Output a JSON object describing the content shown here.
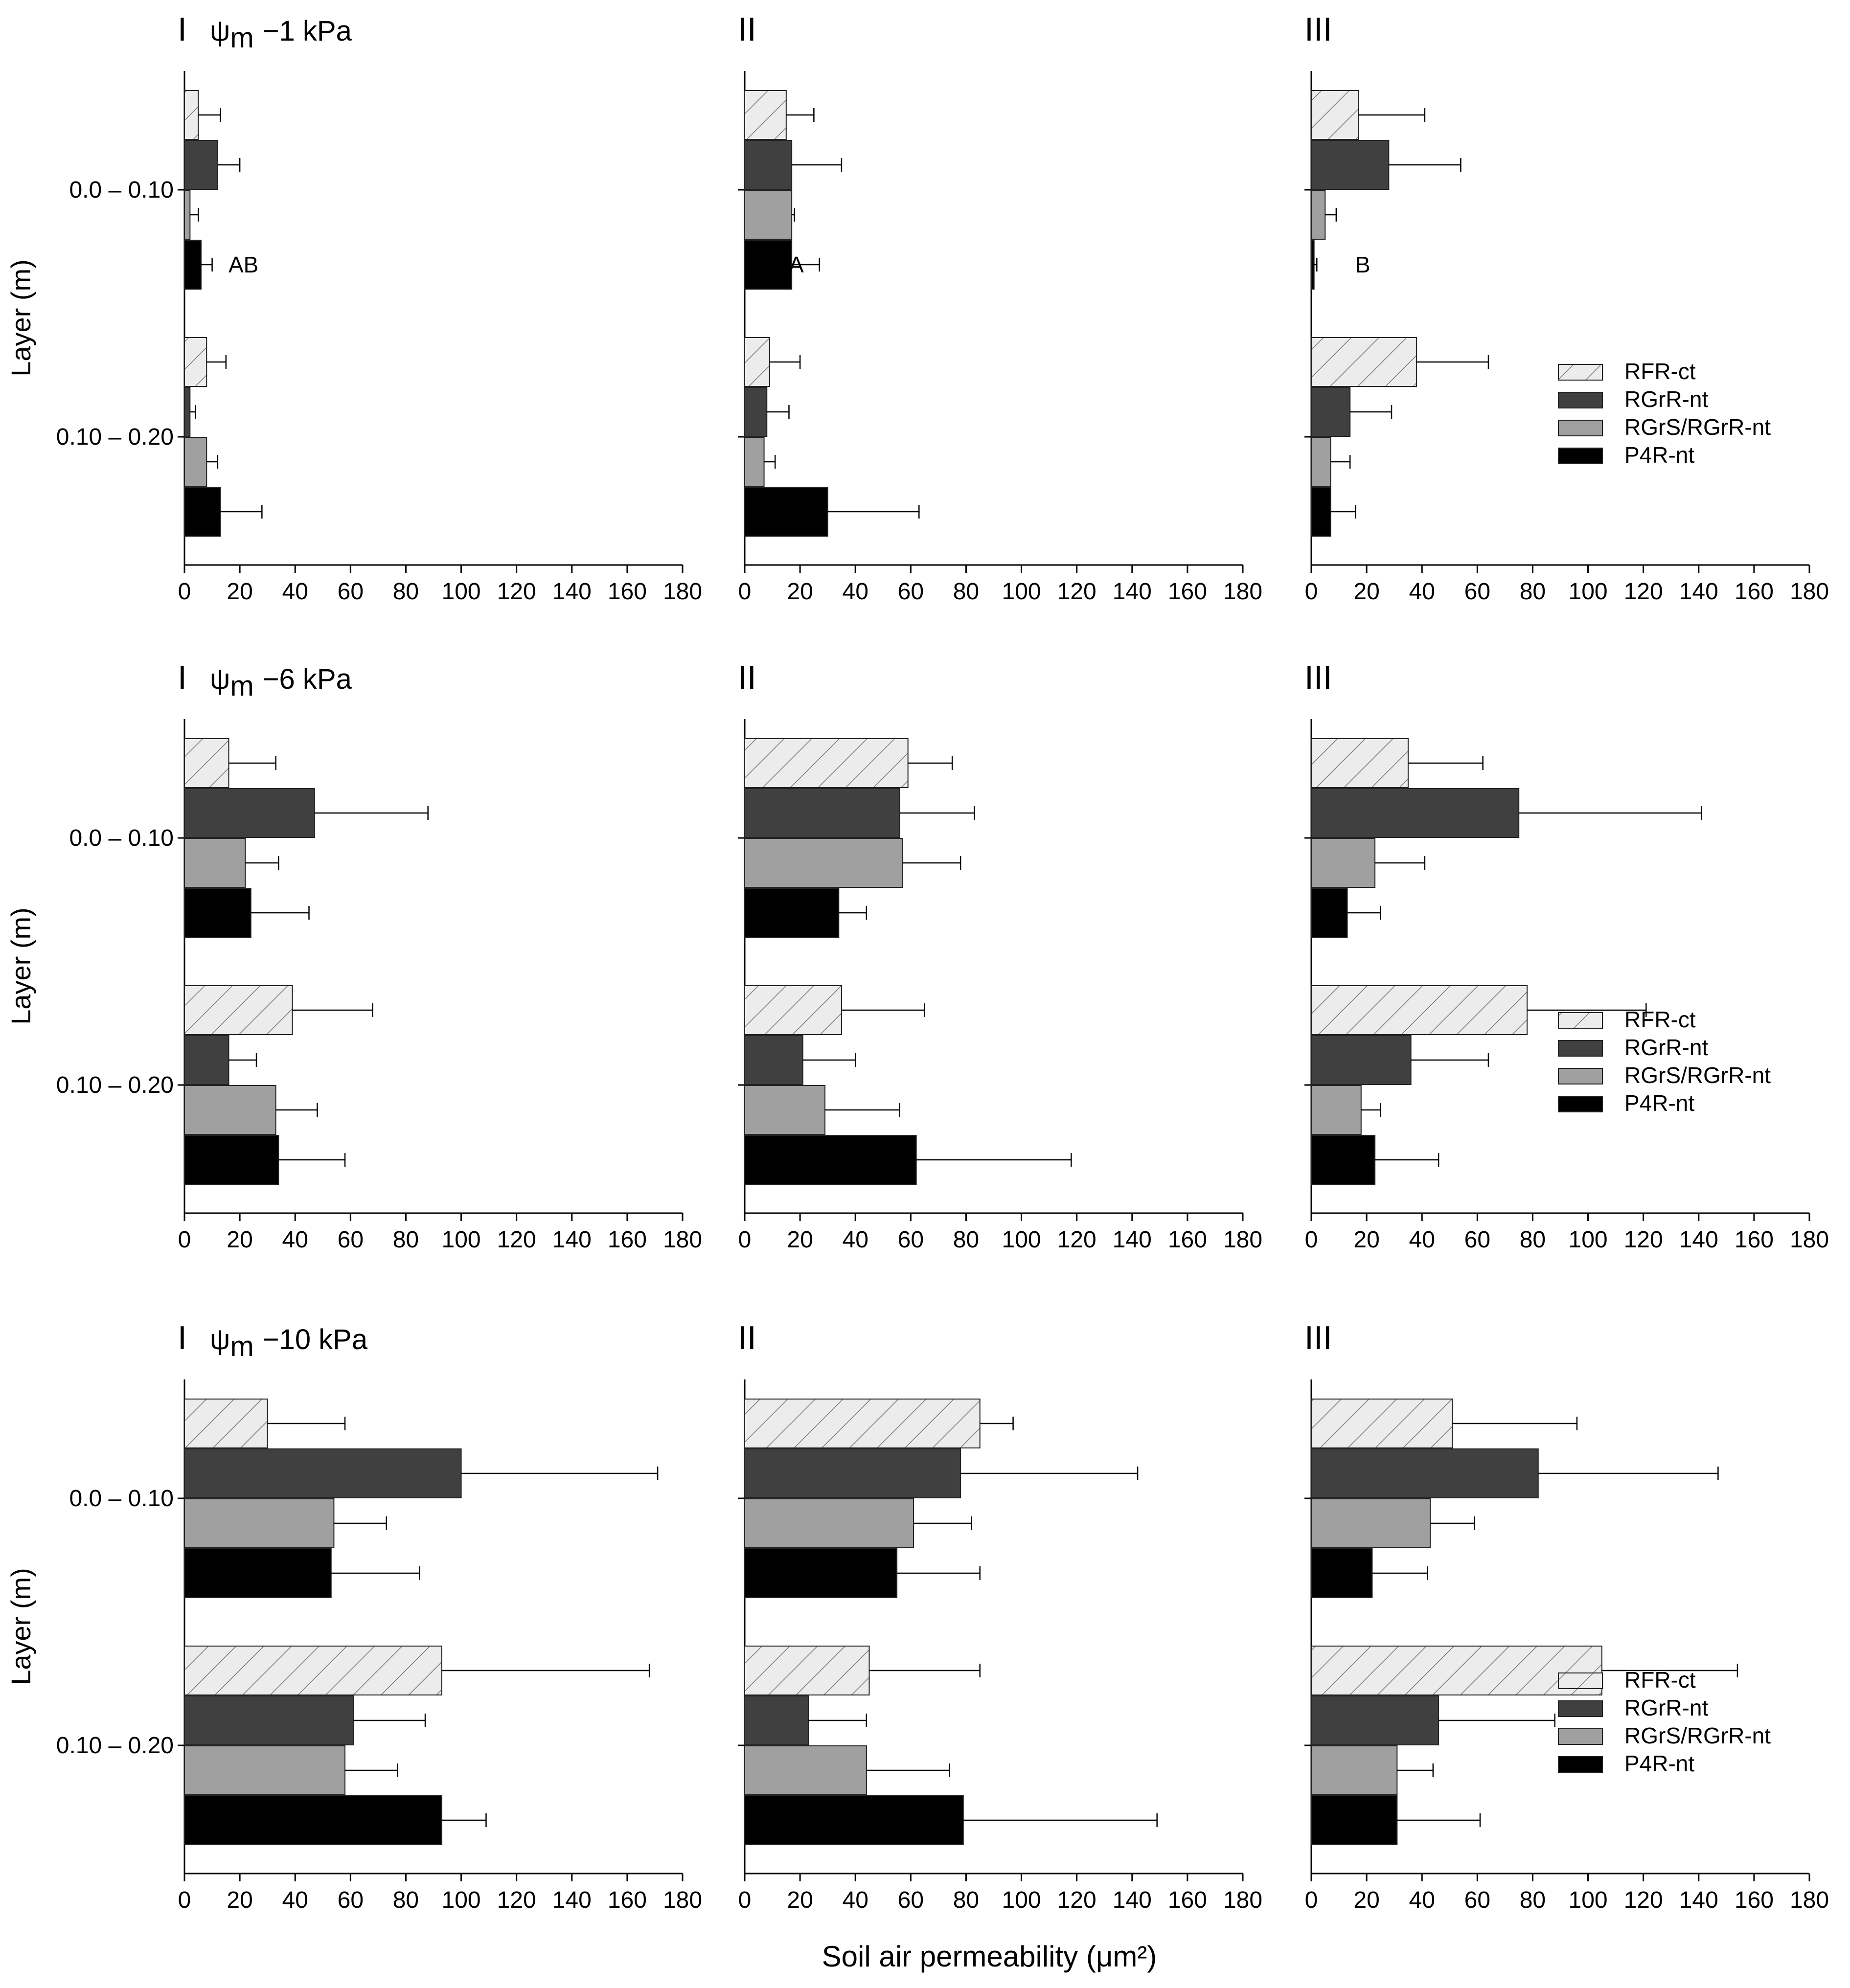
{
  "chart_data": {
    "type": "bar",
    "orientation": "horizontal",
    "xlabel": "Soil air permeability (μm²)",
    "ylabel": "Layer (m)",
    "xlim": [
      0,
      180
    ],
    "xticks": [
      0,
      20,
      40,
      60,
      80,
      100,
      120,
      140,
      160,
      180
    ],
    "categories": [
      "0.0 – 0.10",
      "0.10 – 0.20"
    ],
    "legend": [
      {
        "name": "RFR-ct",
        "style": "hatched",
        "color": "#ececec"
      },
      {
        "name": "RGrR-nt",
        "style": "solid",
        "color": "#404040"
      },
      {
        "name": "RGrS/RGrR-nt",
        "style": "solid",
        "color": "#a0a0a0"
      },
      {
        "name": "P4R-nt",
        "style": "solid",
        "color": "#000000"
      }
    ],
    "rows": [
      {
        "suction_symbol": "ψ",
        "suction_sub": "m",
        "suction_value": "−1 kPa",
        "panels": [
          {
            "label": "I",
            "values": [
              [
                5,
                12,
                2,
                6
              ],
              [
                8,
                2,
                8,
                13
              ]
            ],
            "errors": [
              [
                8,
                8,
                3,
                4
              ],
              [
                7,
                2,
                4,
                15
              ]
            ],
            "letter": "AB"
          },
          {
            "label": "II",
            "values": [
              [
                15,
                17,
                17,
                17
              ],
              [
                9,
                8,
                7,
                30
              ]
            ],
            "errors": [
              [
                10,
                18,
                1,
                10
              ],
              [
                11,
                8,
                4,
                33
              ]
            ],
            "letter": "A"
          },
          {
            "label": "III",
            "values": [
              [
                17,
                28,
                5,
                1
              ],
              [
                38,
                14,
                7,
                7
              ]
            ],
            "errors": [
              [
                24,
                26,
                4,
                1
              ],
              [
                26,
                15,
                7,
                9
              ]
            ],
            "letter": "B"
          }
        ]
      },
      {
        "suction_symbol": "ψ",
        "suction_sub": "m",
        "suction_value": "−6 kPa",
        "panels": [
          {
            "label": "I",
            "values": [
              [
                16,
                47,
                22,
                24
              ],
              [
                39,
                16,
                33,
                34
              ]
            ],
            "errors": [
              [
                17,
                41,
                12,
                21
              ],
              [
                29,
                10,
                15,
                24
              ]
            ],
            "letter": ""
          },
          {
            "label": "II",
            "values": [
              [
                59,
                56,
                57,
                34
              ],
              [
                35,
                21,
                29,
                62
              ]
            ],
            "errors": [
              [
                16,
                27,
                21,
                10
              ],
              [
                30,
                19,
                27,
                56
              ]
            ],
            "letter": ""
          },
          {
            "label": "III",
            "values": [
              [
                35,
                75,
                23,
                13
              ],
              [
                78,
                36,
                18,
                23
              ]
            ],
            "errors": [
              [
                27,
                66,
                18,
                12
              ],
              [
                43,
                28,
                7,
                23
              ]
            ],
            "letter": ""
          }
        ]
      },
      {
        "suction_symbol": "ψ",
        "suction_sub": "m",
        "suction_value": "−10 kPa",
        "panels": [
          {
            "label": "I",
            "values": [
              [
                30,
                100,
                54,
                53
              ],
              [
                93,
                61,
                58,
                93
              ]
            ],
            "errors": [
              [
                28,
                71,
                19,
                32
              ],
              [
                75,
                26,
                19,
                16
              ]
            ],
            "letter": ""
          },
          {
            "label": "II",
            "values": [
              [
                85,
                78,
                61,
                55
              ],
              [
                45,
                23,
                44,
                79
              ]
            ],
            "errors": [
              [
                12,
                64,
                21,
                30
              ],
              [
                40,
                21,
                30,
                70
              ]
            ],
            "letter": ""
          },
          {
            "label": "III",
            "values": [
              [
                51,
                82,
                43,
                22
              ],
              [
                105,
                46,
                31,
                31
              ]
            ],
            "errors": [
              [
                45,
                65,
                16,
                20
              ],
              [
                49,
                42,
                13,
                30
              ]
            ],
            "letter": ""
          }
        ]
      }
    ]
  }
}
